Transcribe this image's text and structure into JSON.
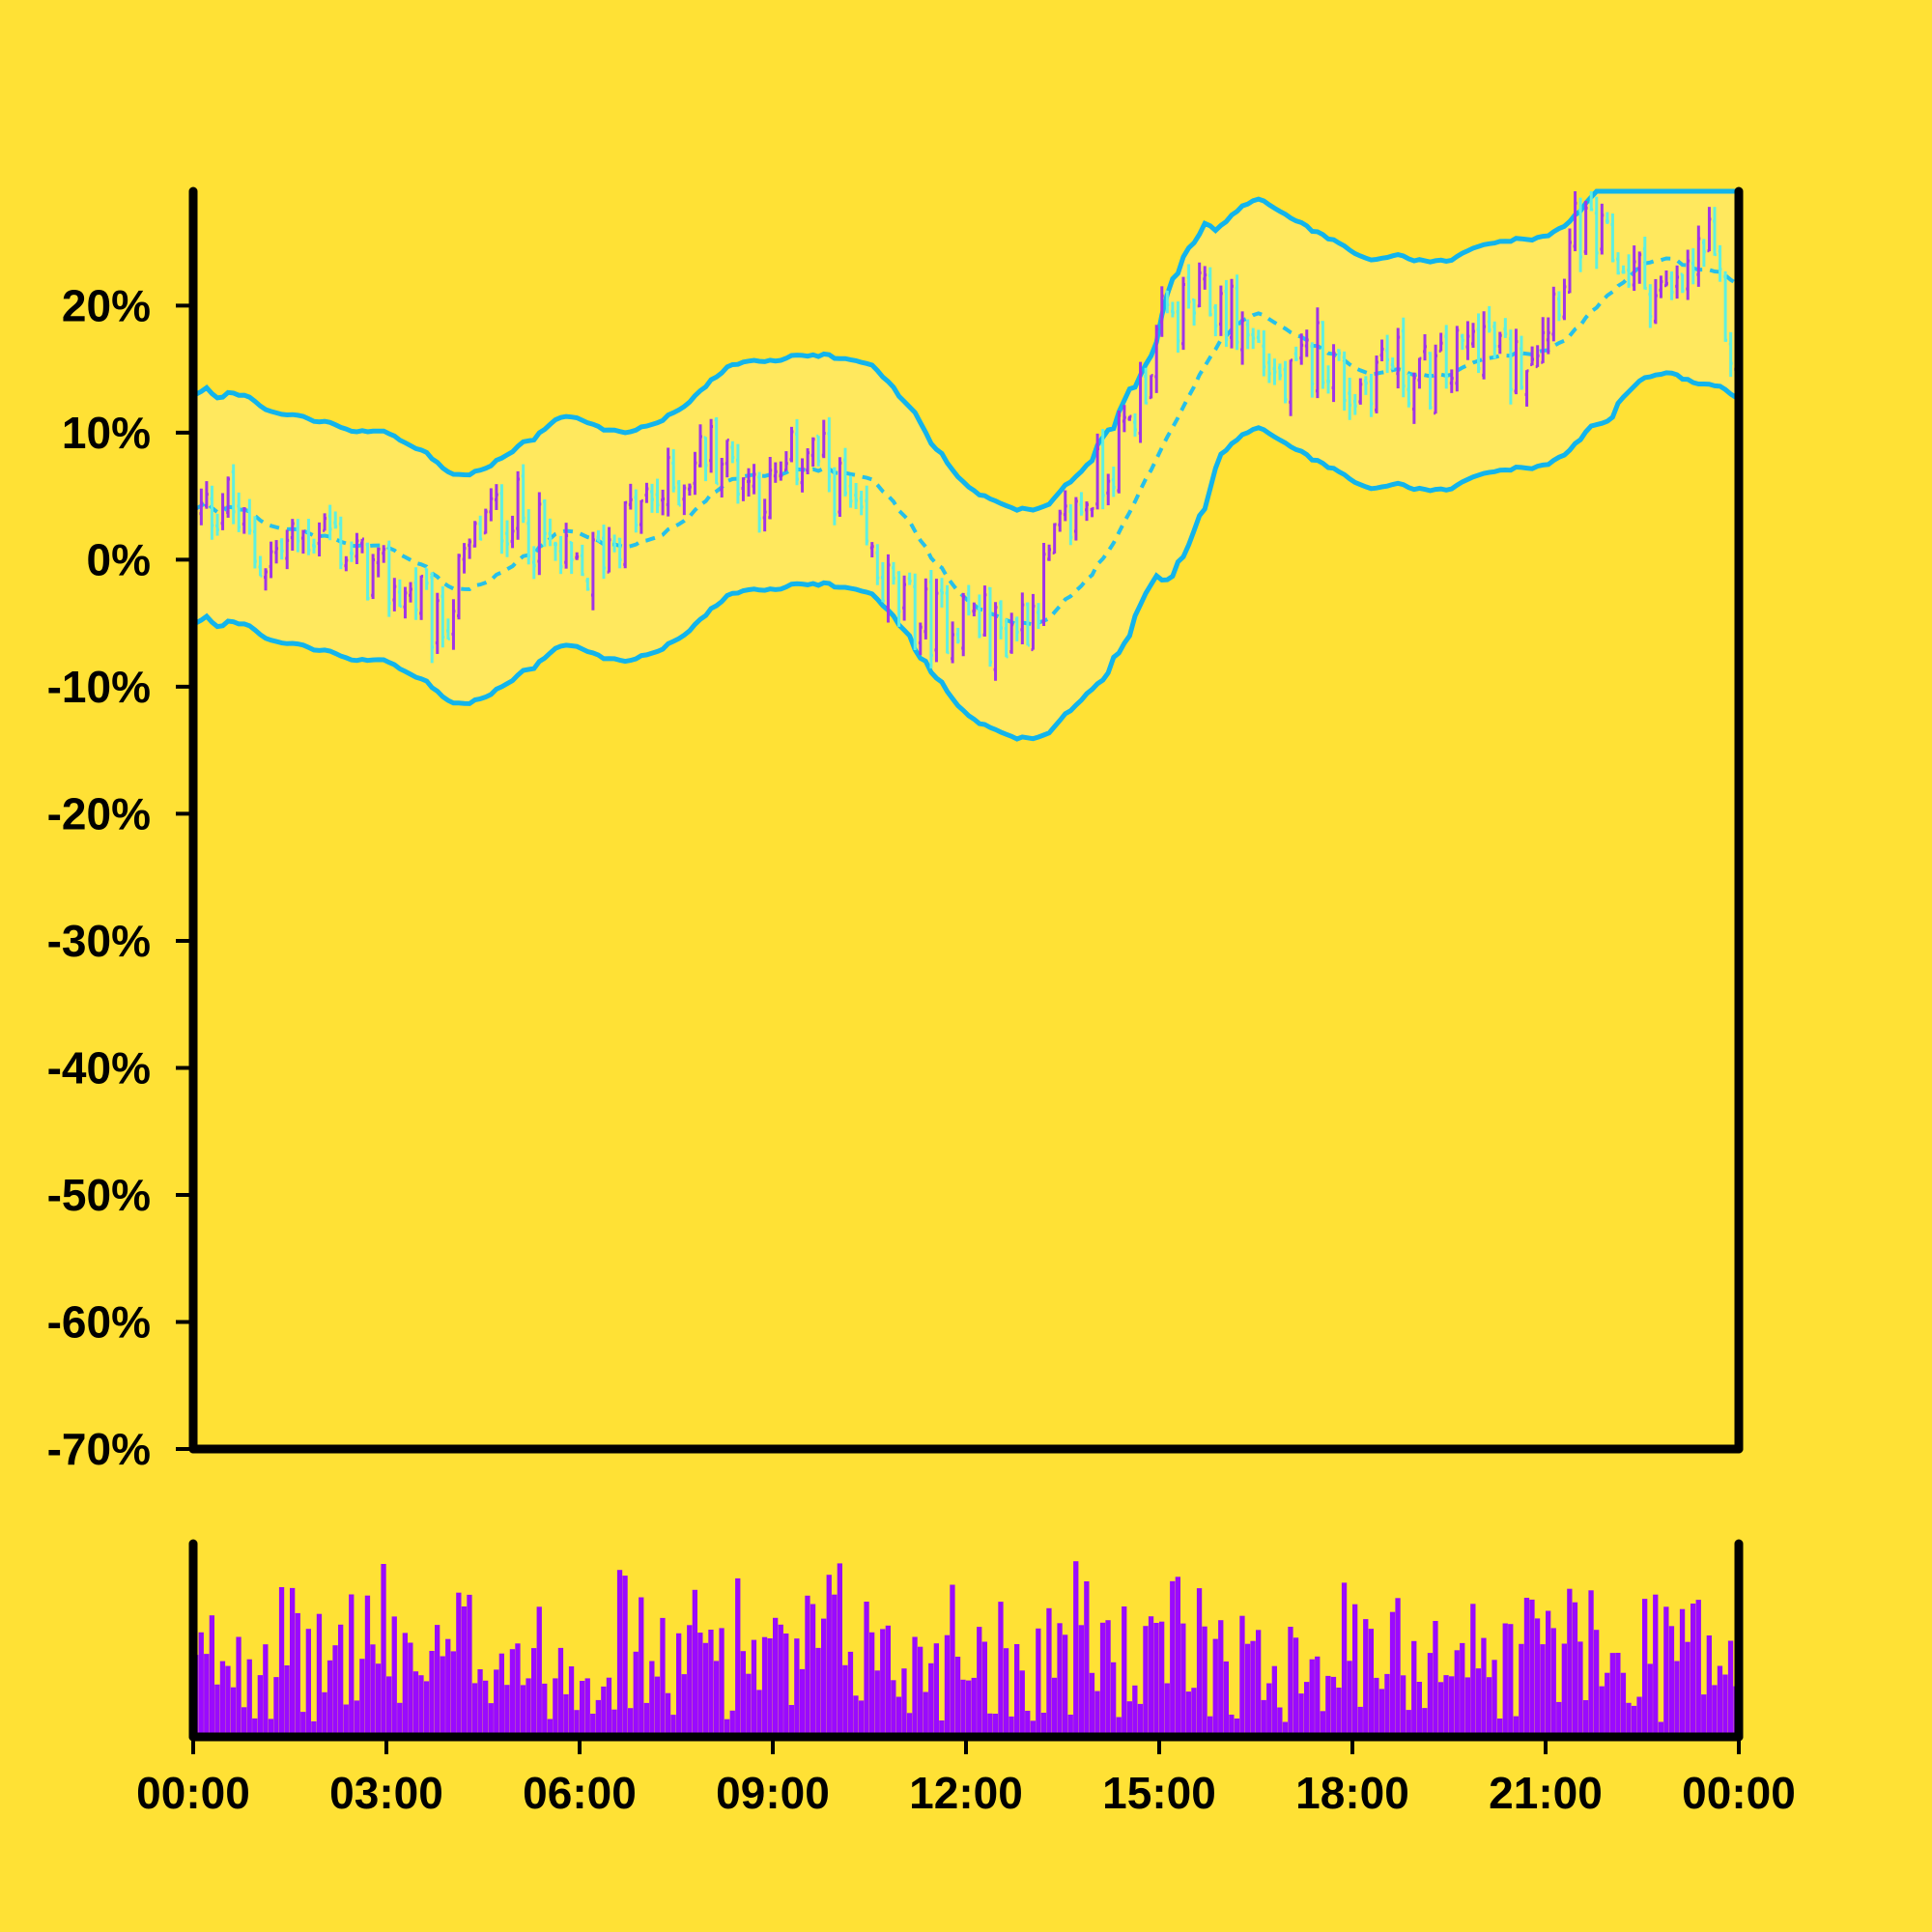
{
  "chart_data": {
    "type": "ohlc",
    "x_ticks": [
      "00:00",
      "03:00",
      "06:00",
      "09:00",
      "12:00",
      "15:00",
      "18:00",
      "21:00",
      "00:00"
    ],
    "y_ticks": [
      "20%",
      "10%",
      "0%",
      "-10%",
      "-20%",
      "-30%",
      "-40%",
      "-50%",
      "-60%",
      "-70%"
    ],
    "y_tick_values": [
      20,
      10,
      0,
      -10,
      -20,
      -30,
      -40,
      -50,
      -60,
      -70
    ],
    "ylim": [
      -70,
      29
    ],
    "x_range_hours": [
      0,
      24
    ],
    "bar_interval_minutes": 5,
    "grid": false,
    "legend": "none",
    "close_anchors": {
      "hours": [
        0,
        0.5,
        1,
        1.5,
        2,
        2.5,
        3,
        3.5,
        3.8,
        4.5,
        5,
        5.5,
        6,
        6.5,
        7,
        7.5,
        8,
        8.5,
        9,
        9.5,
        10,
        10.5,
        11,
        11.5,
        12,
        12.5,
        13,
        13.5,
        14,
        14.5,
        15,
        15.5,
        16,
        16.5,
        17,
        17.5,
        18,
        18.5,
        19,
        19.5,
        20,
        20.5,
        21,
        21.5,
        22,
        22.5,
        23,
        23.5,
        24
      ],
      "values": [
        3,
        5,
        0,
        1,
        3,
        0,
        -2,
        -3,
        -6,
        3,
        4,
        1,
        -2,
        2,
        4,
        6,
        9,
        7,
        5,
        9,
        6,
        0,
        -4,
        -5,
        -4,
        -6,
        -4,
        2,
        6,
        10,
        18,
        20,
        20,
        17,
        13,
        17,
        13,
        16,
        14,
        15,
        18,
        15,
        19,
        26,
        24,
        22,
        20,
        25,
        14
      ]
    },
    "bollinger": {
      "period_bars": 20,
      "std_multiplier": 2,
      "band_upper_display_max": 29
    },
    "colors": {
      "background": "#ffe135",
      "up_bar": "#a134e6",
      "down_bar": "#5ff0e0",
      "band_line": "#12b4ec",
      "band_fill": "#ffe85e",
      "middle_line": "#26c0ea",
      "volume": "#9a0aff",
      "axis": "#000000"
    },
    "volume": {
      "shown": true,
      "tick_labels": "none"
    }
  }
}
